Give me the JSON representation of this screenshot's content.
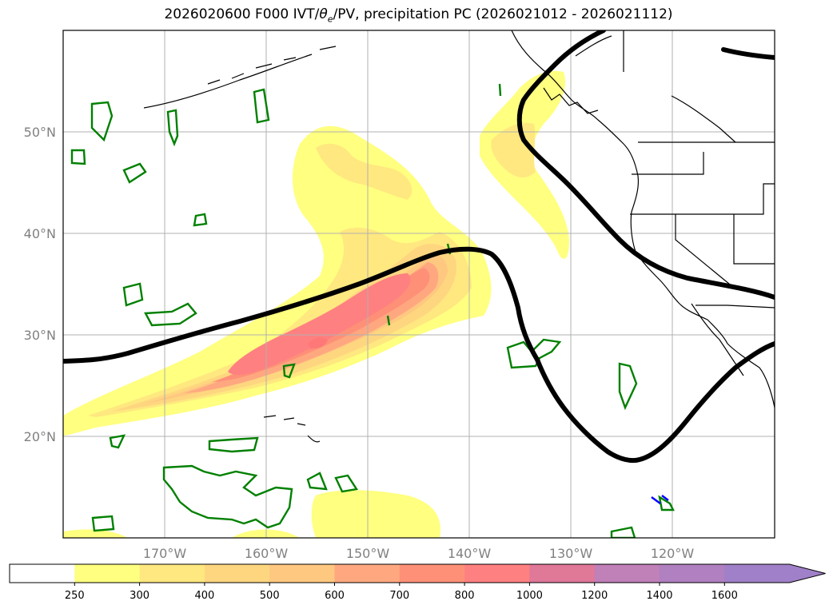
{
  "title": {
    "prefix": "2026020600 F000 IVT/",
    "symbol": "θ",
    "subscript": "e",
    "suffix": "/PV, precipitation PC (2026021012 - 2026021112)"
  },
  "map": {
    "lat_labels": [
      "50°N",
      "40°N",
      "30°N",
      "20°N"
    ],
    "lon_labels": [
      "170°W",
      "160°W",
      "150°W",
      "140°W",
      "130°W",
      "120°W"
    ],
    "lat_range": [
      10,
      60
    ],
    "lon_range": [
      -180,
      -110
    ],
    "fields": [
      "IVT shaded",
      "θe/PV contour (black)",
      "precipitation PC (green)"
    ]
  },
  "colorbar": {
    "tick_labels": [
      "250",
      "300",
      "400",
      "500",
      "600",
      "700",
      "800",
      "1000",
      "1200",
      "1400",
      "1600"
    ],
    "colors": [
      "#ffffff",
      "#ffff80",
      "#ffe880",
      "#ffd680",
      "#ffc880",
      "#ffa880",
      "#ff9078",
      "#ff8080",
      "#e07898",
      "#c080b8",
      "#b080c0",
      "#a080c8"
    ],
    "extend": "max"
  },
  "colors": {
    "contour": "#000000",
    "precip": "#008000",
    "grid": "#b0b0b0",
    "label": "#808080"
  }
}
